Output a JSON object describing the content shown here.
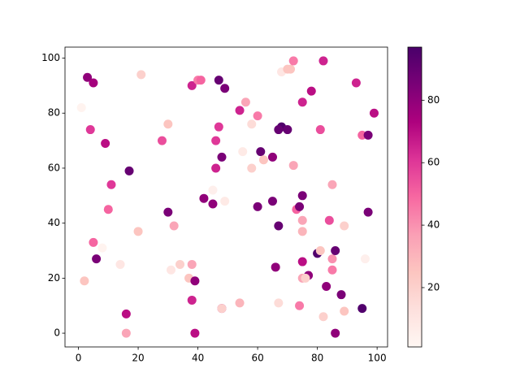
{
  "chart_data": {
    "type": "scatter",
    "x": [
      1,
      3,
      5,
      21,
      4,
      9,
      11,
      10,
      17,
      5,
      6,
      8,
      14,
      2,
      16,
      16,
      20,
      28,
      30,
      30,
      32,
      31,
      34,
      38,
      37,
      39,
      38,
      39,
      38,
      40,
      41,
      47,
      49,
      47,
      46,
      48,
      46,
      45,
      42,
      45,
      49,
      48,
      48,
      54,
      56,
      58,
      60,
      55,
      58,
      61,
      62,
      65,
      60,
      65,
      67,
      66,
      54,
      67,
      68,
      70,
      71,
      72,
      68,
      67,
      70,
      72,
      73,
      74,
      75,
      75,
      75,
      75,
      77,
      75,
      76,
      74,
      75,
      78,
      82,
      81,
      80,
      81,
      84,
      85,
      85,
      86,
      85,
      83,
      82,
      88,
      86,
      89,
      89,
      93,
      95,
      97,
      99,
      96,
      97,
      95
    ],
    "y": [
      82,
      93,
      91,
      94,
      74,
      69,
      54,
      45,
      59,
      33,
      27,
      31,
      25,
      19,
      7,
      0,
      37,
      70,
      76,
      44,
      39,
      23,
      25,
      25,
      20,
      19,
      12,
      0,
      90,
      92,
      92,
      92,
      89,
      75,
      70,
      64,
      60,
      52,
      49,
      47,
      48,
      9,
      9,
      81,
      84,
      76,
      79,
      66,
      60,
      66,
      63,
      64,
      46,
      48,
      39,
      24,
      11,
      11,
      95,
      96,
      96,
      99,
      75,
      74,
      74,
      61,
      45,
      46,
      50,
      41,
      37,
      26,
      21,
      20,
      20,
      10,
      84,
      88,
      99,
      74,
      29,
      30,
      41,
      54,
      27,
      30,
      23,
      17,
      6,
      14,
      0,
      39,
      8,
      91,
      72,
      72,
      80,
      27,
      44,
      9
    ],
    "c": [
      3,
      80,
      75,
      20,
      60,
      70,
      60,
      50,
      90,
      50,
      85,
      3,
      10,
      25,
      70,
      35,
      25,
      55,
      25,
      85,
      35,
      10,
      20,
      35,
      25,
      80,
      65,
      70,
      65,
      45,
      50,
      90,
      85,
      60,
      60,
      85,
      65,
      5,
      80,
      80,
      8,
      70,
      20,
      65,
      35,
      15,
      45,
      8,
      20,
      90,
      25,
      80,
      85,
      85,
      90,
      80,
      30,
      15,
      10,
      25,
      25,
      45,
      95,
      90,
      90,
      35,
      50,
      85,
      85,
      35,
      30,
      70,
      80,
      35,
      20,
      45,
      65,
      70,
      65,
      55,
      95,
      25,
      55,
      35,
      40,
      90,
      45,
      80,
      20,
      85,
      80,
      20,
      25,
      65,
      50,
      85,
      70,
      5,
      85,
      95
    ],
    "colormap": [
      "#fff7f3",
      "#fde0dd",
      "#fcc5c0",
      "#fa9fb5",
      "#f768a1",
      "#dd3497",
      "#ae017e",
      "#7a0177",
      "#49006a"
    ],
    "clim": [
      1,
      97
    ],
    "cticks": [
      20,
      40,
      60,
      80
    ],
    "xlim": [
      -4.5,
      103.5
    ],
    "xticks": [
      0,
      20,
      40,
      60,
      80,
      100
    ],
    "ylim": [
      -5,
      104
    ],
    "yticks": [
      0,
      20,
      40,
      60,
      80,
      100
    ]
  }
}
